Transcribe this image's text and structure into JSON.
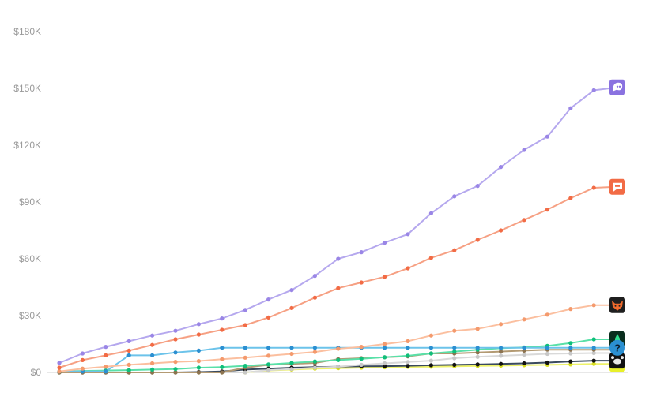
{
  "chart_data": {
    "type": "line",
    "title": "",
    "xlabel": "",
    "ylabel": "",
    "ylim": [
      0,
      180000
    ],
    "y_ticks": [
      {
        "value": 0,
        "label": "$0"
      },
      {
        "value": 30000,
        "label": "$30K"
      },
      {
        "value": 60000,
        "label": "$60K"
      },
      {
        "value": 90000,
        "label": "$90K"
      },
      {
        "value": 120000,
        "label": "$120K"
      },
      {
        "value": 150000,
        "label": "$150K"
      },
      {
        "value": 180000,
        "label": "$180K"
      }
    ],
    "x": [
      0,
      1,
      2,
      3,
      4,
      5,
      6,
      7,
      8,
      9,
      10,
      11,
      12,
      13,
      14,
      15,
      16,
      17,
      18,
      19,
      20,
      21,
      22,
      23,
      24,
      25
    ],
    "grid": false,
    "legend": "none",
    "series": [
      {
        "color": "#b5a8ee",
        "dot": "#9a86e6",
        "icon": "ghost-icon",
        "icon_bg": "#8a72e0",
        "values": [
          5000,
          10000,
          13500,
          16500,
          19500,
          22000,
          25500,
          28500,
          33000,
          38500,
          43500,
          51000,
          60000,
          63500,
          68500,
          73000,
          84000,
          93000,
          98500,
          108500,
          117500,
          124500,
          139500,
          149000,
          150500,
          null
        ]
      },
      {
        "color": "#f6a083",
        "dot": "#f26b45",
        "icon": "speech-bubble-icon",
        "icon_bg": "#f26b45",
        "values": [
          2500,
          6500,
          9000,
          11500,
          14500,
          17500,
          20000,
          22500,
          25000,
          29000,
          34000,
          39500,
          44500,
          47500,
          50500,
          55000,
          60500,
          64500,
          70000,
          75000,
          80500,
          86000,
          92000,
          97500,
          98000,
          null
        ]
      },
      {
        "color": "#fbbf9f",
        "dot": "#f49a6d",
        "icon": "fox-icon",
        "icon_bg": "#1f1f1f",
        "values": [
          500,
          2000,
          3000,
          4000,
          4800,
          5600,
          6000,
          7000,
          7800,
          8800,
          9800,
          10800,
          12500,
          13500,
          15000,
          16500,
          19500,
          22000,
          23000,
          25500,
          28000,
          30500,
          33500,
          35500,
          35500,
          null
        ]
      },
      {
        "color": "#6cc3ea",
        "dot": "#2b8fd1",
        "icon": "question-icon",
        "icon_bg": "#2b8fd1",
        "values": [
          500,
          500,
          500,
          9000,
          9000,
          10500,
          11500,
          13000,
          13000,
          13000,
          13000,
          13000,
          13000,
          13000,
          13000,
          13000,
          13000,
          13000,
          13000,
          13000,
          13000,
          13000,
          13000,
          13000,
          13000,
          null
        ]
      },
      {
        "color": "#59e0a8",
        "dot": "#0fbf7a",
        "icon": "rocket-icon",
        "icon_bg": "#0a2e1e",
        "values": [
          500,
          800,
          1000,
          1200,
          1500,
          1800,
          2500,
          2800,
          3500,
          4200,
          5000,
          5800,
          6500,
          7200,
          8000,
          8800,
          10000,
          11000,
          12000,
          12800,
          13200,
          14000,
          15500,
          17500,
          17500,
          null
        ]
      },
      {
        "color": "#b39a73",
        "dot": "#8c7350",
        "icon": "",
        "values": [
          0,
          0,
          0,
          0,
          0,
          0,
          0,
          0,
          2500,
          4000,
          4500,
          5000,
          7000,
          7500,
          8000,
          8500,
          10000,
          10000,
          10500,
          11000,
          11500,
          12000,
          12000,
          12000,
          12000,
          null
        ]
      },
      {
        "color": "#d9d9d9",
        "dot": "#c7c7c7",
        "icon": "",
        "values": [
          0,
          0,
          0,
          0,
          0,
          0,
          0,
          0,
          0,
          1200,
          1800,
          2500,
          3000,
          4000,
          4800,
          5500,
          6200,
          7500,
          8200,
          8800,
          9300,
          9800,
          10000,
          10200,
          10200,
          null
        ]
      },
      {
        "color": "#3a4a5e",
        "dot": "#111111",
        "icon": "crab-icon",
        "icon_bg": "#111111",
        "values": [
          0,
          0,
          0,
          0,
          0,
          0,
          200,
          500,
          1500,
          2000,
          2500,
          2800,
          3000,
          3200,
          3300,
          3500,
          3800,
          4000,
          4200,
          4500,
          4800,
          5200,
          5800,
          6200,
          6200,
          null
        ]
      },
      {
        "color": "#eef26a",
        "dot": "#d8de23",
        "icon": "smile-icon",
        "icon_bg": "#e8f02a",
        "values": [
          0,
          0,
          0,
          0,
          0,
          0,
          0,
          0,
          0,
          1000,
          1500,
          2000,
          2200,
          2500,
          2700,
          2900,
          3000,
          3200,
          3400,
          3600,
          3800,
          4000,
          4200,
          4500,
          4500,
          null
        ]
      }
    ]
  }
}
